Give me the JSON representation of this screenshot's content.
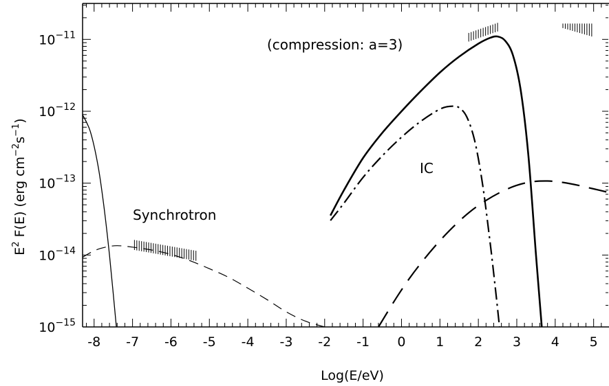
{
  "chart_data": {
    "type": "line",
    "title": "",
    "xlabel": "Log(E/eV)",
    "ylabel": {
      "base": "E",
      "base_exp": "2",
      "rest": " F(E)  (erg cm",
      "exp1": "−2",
      "mid": "s",
      "exp2": "−1",
      "close": ")"
    },
    "xlim": [
      -8.3,
      5.4
    ],
    "ylim_log10": [
      -15,
      -10.5
    ],
    "y_scale": "log",
    "x_ticks": [
      "-8",
      "-7",
      "-6",
      "-5",
      "-4",
      "-3",
      "-2",
      "-1",
      "0",
      "1",
      "2",
      "3",
      "4",
      "5"
    ],
    "x_tick_values": [
      -8,
      -7,
      -6,
      -5,
      -4,
      -3,
      -2,
      -1,
      0,
      1,
      2,
      3,
      4,
      5
    ],
    "y_ticks": [
      {
        "value": -15,
        "base": "10",
        "exp": "−15"
      },
      {
        "value": -14,
        "base": "10",
        "exp": "−14"
      },
      {
        "value": -13,
        "base": "10",
        "exp": "−13"
      },
      {
        "value": -12,
        "base": "10",
        "exp": "−12"
      },
      {
        "value": -11,
        "base": "10",
        "exp": "−11"
      }
    ],
    "annotations": {
      "compression": "(compression: a=3)",
      "synchrotron": "Synchrotron",
      "ic": "IC"
    },
    "series": [
      {
        "style": "thin-solid",
        "x": [
          -8.3,
          -8.1,
          -7.9,
          -7.75,
          -7.6,
          -7.5,
          -7.42
        ],
        "y": [
          -12.05,
          -12.28,
          -12.75,
          -13.3,
          -14.0,
          -14.55,
          -15.0
        ]
      },
      {
        "style": "thin-dashed",
        "x": [
          -8.3,
          -8.0,
          -7.7,
          -7.4,
          -7.0,
          -6.5,
          -6.0,
          -5.5,
          -5.0,
          -4.5,
          -4.0,
          -3.5,
          -3.0,
          -2.5,
          -2.0
        ],
        "y": [
          -14.03,
          -13.94,
          -13.89,
          -13.87,
          -13.89,
          -13.93,
          -13.99,
          -14.08,
          -14.19,
          -14.31,
          -14.46,
          -14.62,
          -14.79,
          -14.92,
          -15.0
        ]
      },
      {
        "style": "thick-solid",
        "x": [
          -1.85,
          -1.5,
          -1.0,
          -0.5,
          0.0,
          0.5,
          1.0,
          1.5,
          2.0,
          2.3,
          2.5,
          2.7,
          2.9,
          3.1,
          3.3,
          3.5,
          3.65
        ],
        "y": [
          -13.45,
          -13.1,
          -12.65,
          -12.3,
          -12.0,
          -11.72,
          -11.46,
          -11.24,
          -11.06,
          -10.98,
          -10.96,
          -11.02,
          -11.22,
          -11.7,
          -12.6,
          -14.0,
          -15.0
        ]
      },
      {
        "style": "dash-dot",
        "x": [
          -1.85,
          -1.5,
          -1.0,
          -0.5,
          0.0,
          0.5,
          1.0,
          1.3,
          1.5,
          1.7,
          1.9,
          2.1,
          2.3,
          2.45,
          2.55
        ],
        "y": [
          -13.52,
          -13.28,
          -12.92,
          -12.62,
          -12.36,
          -12.14,
          -11.97,
          -11.93,
          -11.95,
          -12.08,
          -12.4,
          -12.98,
          -13.8,
          -14.5,
          -15.0
        ]
      },
      {
        "style": "long-dashed",
        "x": [
          -0.6,
          -0.2,
          0.2,
          0.6,
          1.0,
          1.4,
          1.8,
          2.2,
          2.6,
          3.0,
          3.4,
          3.8,
          4.2,
          4.6,
          5.0,
          5.4
        ],
        "y": [
          -15.0,
          -14.65,
          -14.33,
          -14.05,
          -13.8,
          -13.58,
          -13.39,
          -13.24,
          -13.12,
          -13.03,
          -12.98,
          -12.97,
          -12.99,
          -13.03,
          -13.08,
          -13.13
        ]
      }
    ],
    "observation_bands": [
      {
        "x0": -6.95,
        "x1": -5.35,
        "y0_top": -13.79,
        "y1_top": -13.94,
        "thickness": 0.14
      },
      {
        "x0": 1.75,
        "x1": 2.5,
        "y0_top": -10.91,
        "y1_top": -10.77,
        "thickness": 0.12
      },
      {
        "x0": 4.2,
        "x1": 4.95,
        "y0_top": -10.78,
        "y1_top": -10.78,
        "thickness": 0.18,
        "taper": true
      }
    ]
  }
}
